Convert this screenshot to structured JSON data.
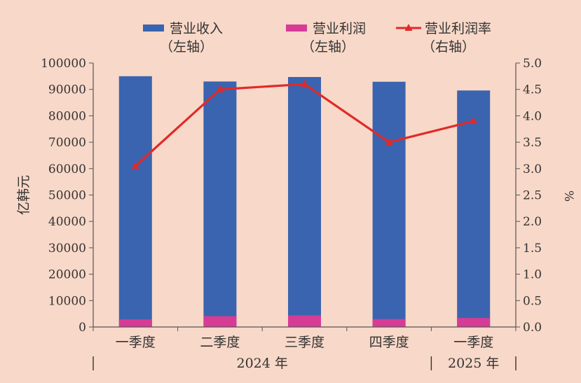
{
  "chart_data": {
    "type": "bar",
    "categories": [
      "一季度",
      "二季度",
      "三季度",
      "四季度",
      "一季度"
    ],
    "year_groups": [
      {
        "label": "2024 年",
        "category_indices": [
          0,
          1,
          2,
          3
        ]
      },
      {
        "label": "2025 年",
        "category_indices": [
          4
        ]
      }
    ],
    "series": [
      {
        "name": "营业收入",
        "axis_note": "（左轴）",
        "type": "bar",
        "axis": "left",
        "color": "#3a64b0",
        "values": [
          95000,
          93000,
          94700,
          92900,
          89600
        ]
      },
      {
        "name": "营业利润",
        "axis_note": "（左轴）",
        "type": "bar",
        "axis": "left",
        "color": "#d63c96",
        "values": [
          2900,
          4100,
          4400,
          3000,
          3400
        ]
      },
      {
        "name": "营业利润率",
        "axis_note": "（右轴）",
        "type": "line",
        "axis": "right",
        "color": "#e02a2a",
        "values": [
          3.05,
          4.5,
          4.6,
          3.5,
          3.9
        ]
      }
    ],
    "ylabel_left": "亿韩元",
    "ylabel_right": "%",
    "ylim_left": [
      0,
      100000
    ],
    "yticks_left": [
      "0",
      "10000",
      "20000",
      "30000",
      "40000",
      "50000",
      "60000",
      "70000",
      "80000",
      "90000",
      "100000"
    ],
    "ylim_right": [
      0,
      5.0
    ],
    "yticks_right": [
      "0.0",
      "0.5",
      "1.0",
      "1.5",
      "2.0",
      "2.5",
      "3.0",
      "3.5",
      "4.0",
      "4.5",
      "5.0"
    ],
    "grid": false,
    "legend_position": "top"
  }
}
